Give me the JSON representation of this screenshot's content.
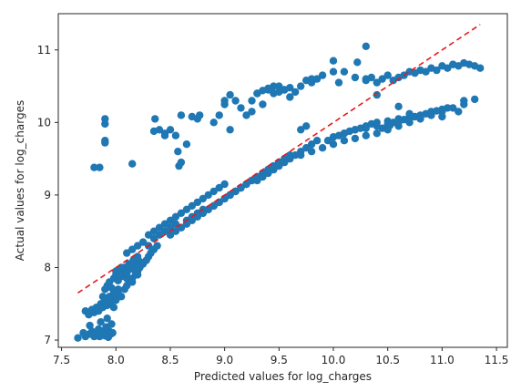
{
  "chart_data": {
    "type": "scatter",
    "xlabel": "Predicted values for log_charges",
    "ylabel": "Actual values for log_charges",
    "xlim": [
      7.47,
      11.6
    ],
    "ylim": [
      6.9,
      11.5
    ],
    "xticks": [
      7.5,
      8.0,
      8.5,
      9.0,
      9.5,
      10.0,
      10.5,
      11.0,
      11.5
    ],
    "yticks": [
      7,
      8,
      9,
      10,
      11
    ],
    "xtick_labels": [
      "7.5",
      "8.0",
      "8.5",
      "9.0",
      "9.5",
      "10.0",
      "10.5",
      "11.0",
      "11.5"
    ],
    "ytick_labels": [
      "7",
      "8",
      "9",
      "10",
      "11"
    ],
    "grid": false,
    "colors": {
      "points": "#1f77b4",
      "reference_line": "#e41a1c",
      "axes": "#262626"
    },
    "reference_line": {
      "style": "dashed",
      "x": [
        7.65,
        11.35
      ],
      "y": [
        7.65,
        11.35
      ]
    },
    "series": [
      {
        "x": [
          7.65,
          7.7,
          7.72,
          7.75,
          7.76,
          7.78,
          7.8,
          7.82,
          7.84,
          7.85,
          7.86,
          7.88,
          7.9,
          7.91,
          7.92,
          7.93,
          7.94,
          7.95,
          7.96,
          7.97,
          7.72,
          7.75,
          7.78,
          7.8,
          7.82,
          7.84,
          7.86,
          7.88,
          7.9,
          7.92,
          7.94,
          7.95,
          7.97,
          7.98,
          8.0,
          8.02,
          7.88,
          7.9,
          7.92,
          7.94,
          7.96,
          7.98,
          8.0,
          8.02,
          8.04,
          8.06,
          8.08,
          8.1,
          8.12,
          8.14,
          8.16,
          8.18,
          8.2,
          8.22,
          7.98,
          8.0,
          8.02,
          8.05,
          8.08,
          8.1,
          8.12,
          8.15,
          8.18,
          8.2,
          8.22,
          8.25,
          8.28,
          8.3,
          8.32,
          8.35,
          8.38,
          8.0,
          8.05,
          8.1,
          8.15,
          8.2,
          8.1,
          8.15,
          8.2,
          8.25,
          8.3,
          8.35,
          8.4,
          8.45,
          8.5,
          8.55,
          8.6,
          8.65,
          8.7,
          8.75,
          8.8,
          8.3,
          8.35,
          8.4,
          8.45,
          8.5,
          8.55,
          8.6,
          8.65,
          8.7,
          8.75,
          8.8,
          8.85,
          8.9,
          8.95,
          9.0,
          8.5,
          8.55,
          8.6,
          8.65,
          8.7,
          8.75,
          8.8,
          8.85,
          8.9,
          8.95,
          9.0,
          9.05,
          9.1,
          9.15,
          9.2,
          8.8,
          8.85,
          8.9,
          8.95,
          9.0,
          9.05,
          9.1,
          9.15,
          9.2,
          9.25,
          9.3,
          9.35,
          9.4,
          9.45,
          9.5,
          8.9,
          8.95,
          9.0,
          9.05,
          9.1,
          9.15,
          9.2,
          9.25,
          9.3,
          9.35,
          9.4,
          9.45,
          9.5,
          9.55,
          9.6,
          9.3,
          9.35,
          9.4,
          9.45,
          9.5,
          9.55,
          9.6,
          9.65,
          9.7,
          9.75,
          9.8,
          9.85,
          9.6,
          9.7,
          9.8,
          9.9,
          10.0,
          10.1,
          10.2,
          10.3,
          10.4,
          10.5,
          10.6,
          10.7,
          10.8,
          10.0,
          10.1,
          10.2,
          10.3,
          10.4,
          10.5,
          10.6,
          10.7,
          10.8,
          10.9,
          11.0,
          9.95,
          10.0,
          10.05,
          10.1,
          10.15,
          10.2,
          10.25,
          10.3,
          10.35,
          10.4,
          10.5,
          10.6,
          10.7,
          10.8,
          10.9,
          11.0,
          11.1,
          11.2,
          7.8,
          7.9,
          7.9,
          7.9,
          8.15,
          8.35,
          8.36,
          8.45,
          8.5,
          8.55,
          8.57,
          8.58,
          8.6,
          8.65,
          8.75,
          8.77,
          8.9,
          8.95,
          9.0,
          9.05,
          9.1,
          9.15,
          9.2,
          9.25,
          9.3,
          9.35,
          9.4,
          9.45,
          9.5,
          9.55,
          9.6,
          9.65,
          9.7,
          9.75,
          9.8,
          9.85,
          9.9,
          10.0,
          10.05,
          10.2,
          10.3,
          10.3,
          10.35,
          10.4,
          10.45,
          10.5,
          10.55,
          10.6,
          10.65,
          10.7,
          10.75,
          10.8,
          10.85,
          10.9,
          10.95,
          11.0,
          11.05,
          11.1,
          11.15,
          11.2,
          11.25,
          11.3,
          11.35,
          11.1,
          11.3,
          11.15,
          11.2
        ],
        "y": [
          7.03,
          7.1,
          7.05,
          7.08,
          7.2,
          7.12,
          7.05,
          7.1,
          7.15,
          7.05,
          7.25,
          7.12,
          7.06,
          7.18,
          7.3,
          7.04,
          7.12,
          7.08,
          7.22,
          7.1,
          7.4,
          7.35,
          7.42,
          7.38,
          7.45,
          7.4,
          7.5,
          7.45,
          7.55,
          7.48,
          7.6,
          7.52,
          7.58,
          7.65,
          7.6,
          7.7,
          7.6,
          7.7,
          7.75,
          7.8,
          7.72,
          7.85,
          7.9,
          7.82,
          7.95,
          7.88,
          8.0,
          7.92,
          8.05,
          7.98,
          8.1,
          8.02,
          8.15,
          8.08,
          7.45,
          7.55,
          7.65,
          7.6,
          7.7,
          7.75,
          7.8,
          7.85,
          7.9,
          7.95,
          8.0,
          8.05,
          8.1,
          8.15,
          8.2,
          8.25,
          8.3,
          7.95,
          8.0,
          7.85,
          7.8,
          7.9,
          8.2,
          8.25,
          8.3,
          8.35,
          8.3,
          8.4,
          8.45,
          8.5,
          8.55,
          8.6,
          8.55,
          8.65,
          8.7,
          8.75,
          8.8,
          8.45,
          8.5,
          8.55,
          8.6,
          8.65,
          8.7,
          8.75,
          8.8,
          8.85,
          8.9,
          8.95,
          9.0,
          9.05,
          9.1,
          9.15,
          8.45,
          8.5,
          8.55,
          8.6,
          8.65,
          8.7,
          8.75,
          8.8,
          8.85,
          8.9,
          8.95,
          9.0,
          9.05,
          9.1,
          9.15,
          8.75,
          8.8,
          8.85,
          8.9,
          8.95,
          9.0,
          9.05,
          9.1,
          9.15,
          9.2,
          9.25,
          9.3,
          9.35,
          9.4,
          9.45,
          8.85,
          8.9,
          8.95,
          9.0,
          9.05,
          9.1,
          9.15,
          9.2,
          9.25,
          9.3,
          9.35,
          9.4,
          9.45,
          9.5,
          9.55,
          9.2,
          9.25,
          9.3,
          9.35,
          9.4,
          9.45,
          9.5,
          9.55,
          9.6,
          9.65,
          9.7,
          9.75,
          9.5,
          9.55,
          9.6,
          9.65,
          9.7,
          9.75,
          9.78,
          9.82,
          9.85,
          9.9,
          9.95,
          10.0,
          10.05,
          9.8,
          9.85,
          9.9,
          9.92,
          9.95,
          9.98,
          10.0,
          10.05,
          10.08,
          10.1,
          10.15,
          9.75,
          9.8,
          9.82,
          9.85,
          9.88,
          9.9,
          9.92,
          9.95,
          9.98,
          10.0,
          10.02,
          10.05,
          10.08,
          10.1,
          10.15,
          10.18,
          10.2,
          10.25,
          9.38,
          9.72,
          9.98,
          10.05,
          9.43,
          9.88,
          10.05,
          9.85,
          9.9,
          9.82,
          9.6,
          9.4,
          9.45,
          9.7,
          10.05,
          10.1,
          10.0,
          10.1,
          10.25,
          9.9,
          10.3,
          10.2,
          10.1,
          10.15,
          10.4,
          10.25,
          10.45,
          10.4,
          10.5,
          10.45,
          10.35,
          10.42,
          10.5,
          10.58,
          10.55,
          10.6,
          10.65,
          10.7,
          10.55,
          10.62,
          10.58,
          10.6,
          10.62,
          10.55,
          10.6,
          10.65,
          10.58,
          10.62,
          10.65,
          10.7,
          10.68,
          10.72,
          10.7,
          10.75,
          10.72,
          10.78,
          10.75,
          10.8,
          10.78,
          10.82,
          10.8,
          10.78,
          10.75,
          10.8,
          10.32,
          10.15,
          10.3
        ]
      }
    ],
    "extra_points": {
      "x": [
        10.3,
        10.22,
        10.0,
        10.1,
        9.8,
        9.3,
        9.05,
        9.25,
        9.6,
        9.55,
        9.5,
        9.45,
        9.4,
        9.35,
        9.0,
        8.6,
        8.7,
        8.4,
        8.45,
        7.85,
        7.9,
        10.55,
        10.45,
        10.52,
        10.65,
        10.75,
        10.85,
        10.95,
        11.05,
        10.6,
        10.4,
        10.7,
        10.8,
        10.9,
        11.0,
        9.7,
        9.75
      ],
      "y": [
        11.05,
        10.83,
        10.85,
        10.7,
        10.6,
        10.4,
        10.38,
        10.3,
        10.48,
        10.45,
        10.42,
        10.5,
        10.47,
        10.44,
        10.3,
        10.1,
        10.08,
        9.9,
        9.82,
        9.38,
        9.75,
        10.0,
        9.92,
        9.96,
        10.04,
        10.08,
        10.12,
        10.16,
        10.2,
        10.22,
        10.38,
        10.12,
        10.06,
        10.1,
        10.08,
        9.9,
        9.95
      ]
    }
  }
}
